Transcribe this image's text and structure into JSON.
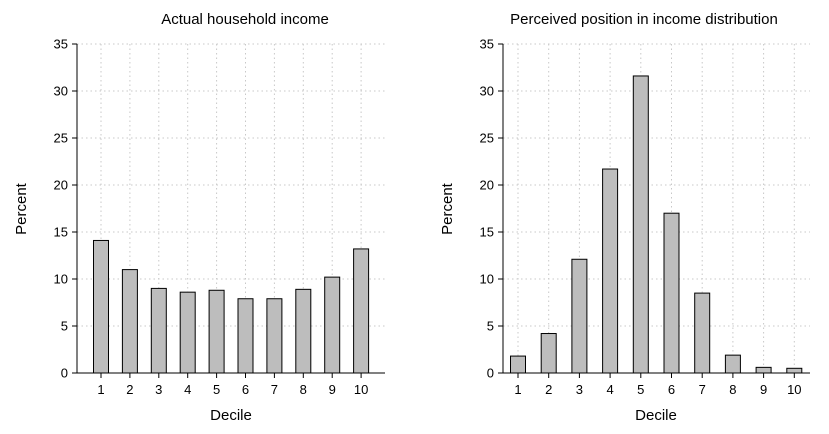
{
  "chart_data": [
    {
      "type": "bar",
      "title": "Actual household income",
      "xlabel": "Decile",
      "ylabel": "Percent",
      "categories": [
        "1",
        "2",
        "3",
        "4",
        "5",
        "6",
        "7",
        "8",
        "9",
        "10"
      ],
      "values": [
        14.1,
        11.0,
        9.0,
        8.6,
        8.8,
        7.9,
        7.9,
        8.9,
        10.2,
        13.2
      ],
      "ylim": [
        0,
        35
      ],
      "yticks": [
        0,
        5,
        10,
        15,
        20,
        25,
        30,
        35
      ],
      "grid": true,
      "colors": {
        "bar": "#bdbdbd",
        "edge": "#000000",
        "grid": "#c8c8c8"
      }
    },
    {
      "type": "bar",
      "title": "Perceived position in income distribution",
      "xlabel": "Decile",
      "ylabel": "Percent",
      "categories": [
        "1",
        "2",
        "3",
        "4",
        "5",
        "6",
        "7",
        "8",
        "9",
        "10"
      ],
      "values": [
        1.8,
        4.2,
        12.1,
        21.7,
        31.6,
        17.0,
        8.5,
        1.9,
        0.6,
        0.5
      ],
      "ylim": [
        0,
        35
      ],
      "yticks": [
        0,
        5,
        10,
        15,
        20,
        25,
        30,
        35
      ],
      "grid": true,
      "colors": {
        "bar": "#bdbdbd",
        "edge": "#000000",
        "grid": "#c8c8c8"
      }
    }
  ]
}
